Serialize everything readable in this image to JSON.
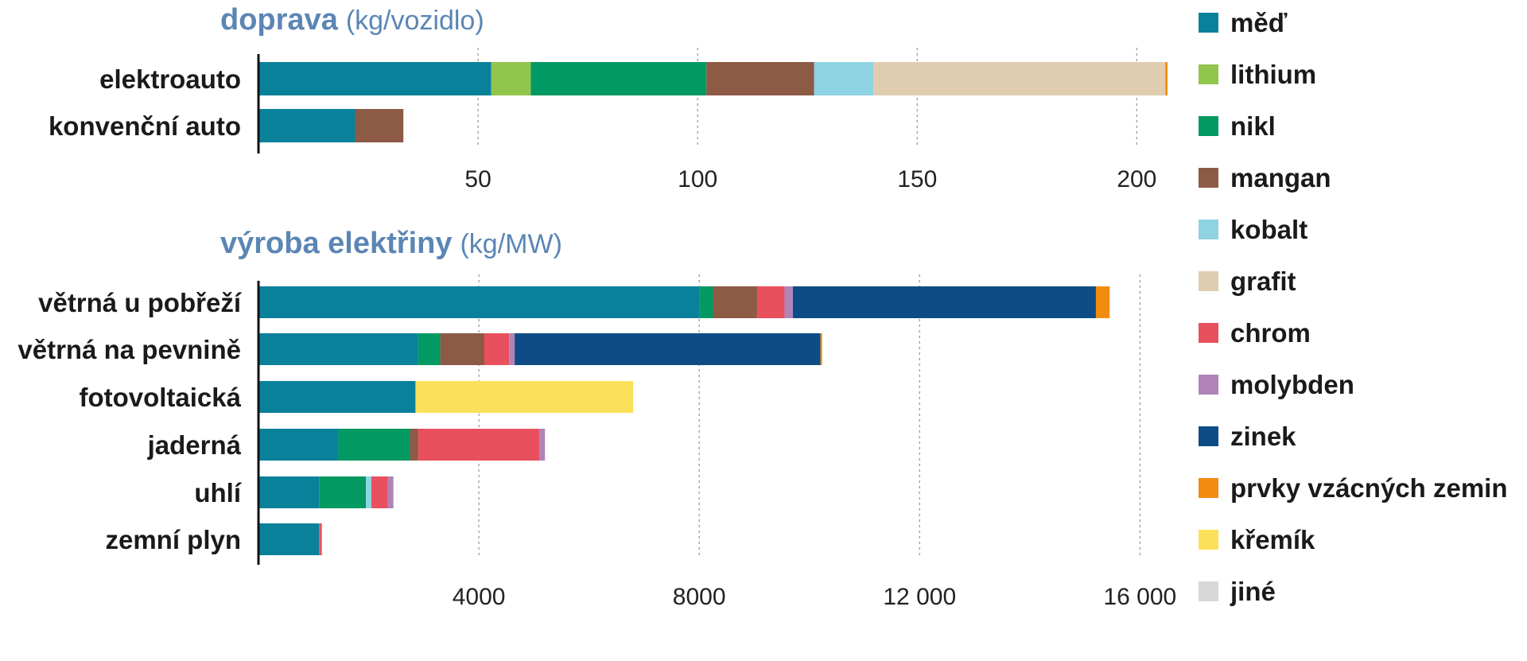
{
  "legend": {
    "items": [
      {
        "name": "měď",
        "color": "#0a819b"
      },
      {
        "name": "lithium",
        "color": "#92c54b"
      },
      {
        "name": "nikl",
        "color": "#039962"
      },
      {
        "name": "mangan",
        "color": "#8d5a46"
      },
      {
        "name": "kobalt",
        "color": "#8fd2e2"
      },
      {
        "name": "grafit",
        "color": "#e0cdb1"
      },
      {
        "name": "chrom",
        "color": "#e9505d"
      },
      {
        "name": "molybden",
        "color": "#b083b9"
      },
      {
        "name": "zinek",
        "color": "#0e4c85"
      },
      {
        "name": "prvky vzácných zemin",
        "color": "#f28c10"
      },
      {
        "name": "křemík",
        "color": "#fde05a"
      },
      {
        "name": "jiné",
        "color": "#d8d8d8"
      }
    ]
  },
  "chart_data": [
    {
      "type": "bar",
      "orientation": "horizontal",
      "stacked": true,
      "title": "doprava",
      "unit": "(kg/vozidlo)",
      "xlim": [
        0,
        207
      ],
      "xticks": [
        50,
        100,
        150,
        200
      ],
      "xtick_labels": [
        "50",
        "100",
        "150",
        "200"
      ],
      "grid": true,
      "categories": [
        "elektroauto",
        "konvenční auto"
      ],
      "series": [
        {
          "name": "měď",
          "values": [
            53,
            22
          ]
        },
        {
          "name": "lithium",
          "values": [
            9,
            0
          ]
        },
        {
          "name": "nikl",
          "values": [
            40,
            0
          ]
        },
        {
          "name": "mangan",
          "values": [
            24.5,
            11
          ]
        },
        {
          "name": "kobalt",
          "values": [
            13.5,
            0
          ]
        },
        {
          "name": "grafit",
          "values": [
            66.5,
            0
          ]
        },
        {
          "name": "chrom",
          "values": [
            0,
            0
          ]
        },
        {
          "name": "molybden",
          "values": [
            0,
            0
          ]
        },
        {
          "name": "zinek",
          "values": [
            0,
            0
          ]
        },
        {
          "name": "prvky vzácných zemin",
          "values": [
            0.5,
            0
          ]
        },
        {
          "name": "křemík",
          "values": [
            0,
            0
          ]
        },
        {
          "name": "jiné",
          "values": [
            0,
            0
          ]
        }
      ]
    },
    {
      "type": "bar",
      "orientation": "horizontal",
      "stacked": true,
      "title": "výroba elektřiny",
      "unit": "(kg/MW)",
      "xlim": [
        0,
        16500
      ],
      "xticks": [
        4000,
        8000,
        12000,
        16000
      ],
      "xtick_labels": [
        "4000",
        "8000",
        "12 000",
        "16 000"
      ],
      "grid": true,
      "categories": [
        "větrná u pobřeží",
        "větrná na pevnině",
        "fotovoltaická",
        "jaderná",
        "uhlí",
        "zemní plyn"
      ],
      "series": [
        {
          "name": "měď",
          "values": [
            8000,
            2900,
            2850,
            1450,
            1100,
            1100
          ]
        },
        {
          "name": "lithium",
          "values": [
            0,
            0,
            0,
            0,
            0,
            0
          ]
        },
        {
          "name": "nikl",
          "values": [
            250,
            400,
            0,
            1300,
            850,
            0
          ]
        },
        {
          "name": "mangan",
          "values": [
            800,
            800,
            0,
            150,
            0,
            0
          ]
        },
        {
          "name": "kobalt",
          "values": [
            0,
            0,
            0,
            0,
            100,
            0
          ]
        },
        {
          "name": "grafit",
          "values": [
            0,
            0,
            0,
            0,
            0,
            0
          ]
        },
        {
          "name": "chrom",
          "values": [
            500,
            450,
            0,
            2200,
            300,
            50
          ]
        },
        {
          "name": "molybden",
          "values": [
            150,
            100,
            0,
            100,
            100,
            0
          ]
        },
        {
          "name": "zinek",
          "values": [
            5500,
            5550,
            0,
            0,
            0,
            0
          ]
        },
        {
          "name": "prvky vzácných zemin",
          "values": [
            250,
            30,
            0,
            0,
            0,
            0
          ]
        },
        {
          "name": "křemík",
          "values": [
            0,
            0,
            3950,
            0,
            0,
            0
          ]
        },
        {
          "name": "jiné",
          "values": [
            0,
            0,
            0,
            0,
            0,
            0
          ]
        }
      ]
    }
  ]
}
